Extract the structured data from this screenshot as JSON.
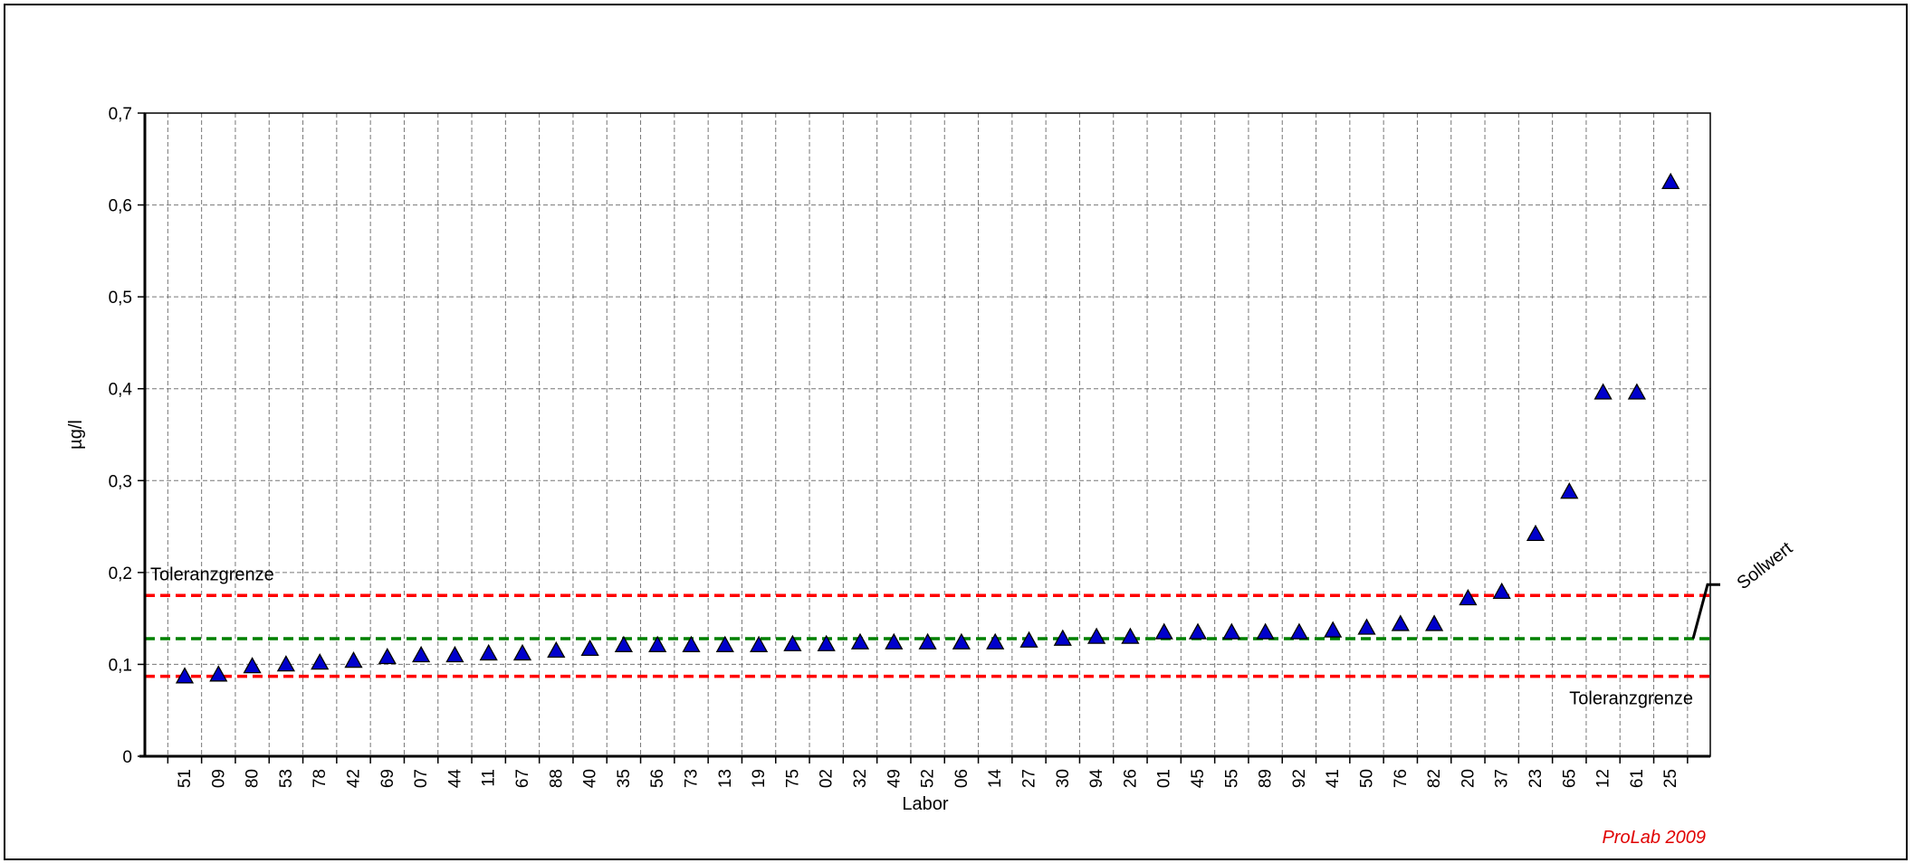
{
  "chart_data": {
    "type": "scatter",
    "xlabel": "Labor",
    "ylabel": "µg/l",
    "ylim": [
      0,
      0.7
    ],
    "y_ticks": [
      "0",
      "0,1",
      "0,2",
      "0,3",
      "0,4",
      "0,5",
      "0,6",
      "0,7"
    ],
    "grid": true,
    "categories": [
      "51",
      "09",
      "80",
      "53",
      "78",
      "42",
      "69",
      "07",
      "44",
      "11",
      "67",
      "88",
      "40",
      "35",
      "56",
      "73",
      "13",
      "19",
      "75",
      "02",
      "32",
      "49",
      "52",
      "06",
      "14",
      "27",
      "30",
      "94",
      "26",
      "01",
      "45",
      "55",
      "89",
      "92",
      "41",
      "50",
      "76",
      "82",
      "20",
      "37",
      "23",
      "65",
      "12",
      "61",
      "25"
    ],
    "values": [
      0.087,
      0.089,
      0.098,
      0.1,
      0.102,
      0.104,
      0.108,
      0.11,
      0.11,
      0.112,
      0.112,
      0.115,
      0.117,
      0.121,
      0.121,
      0.121,
      0.121,
      0.121,
      0.122,
      0.122,
      0.124,
      0.124,
      0.124,
      0.124,
      0.124,
      0.126,
      0.128,
      0.13,
      0.13,
      0.135,
      0.135,
      0.135,
      0.135,
      0.135,
      0.137,
      0.14,
      0.144,
      0.144,
      0.172,
      0.179,
      0.242,
      0.288,
      0.396,
      0.396,
      0.625
    ],
    "marker_color": "#0000cc",
    "reference_lines": [
      {
        "label": "Toleranzgrenze",
        "value": 0.175,
        "color": "#ff0000"
      },
      {
        "label": "Sollwert",
        "value": 0.128,
        "color": "#008000"
      },
      {
        "label": "Toleranzgrenze",
        "value": 0.087,
        "color": "#ff0000"
      }
    ],
    "credit": "ProLab 2009"
  }
}
